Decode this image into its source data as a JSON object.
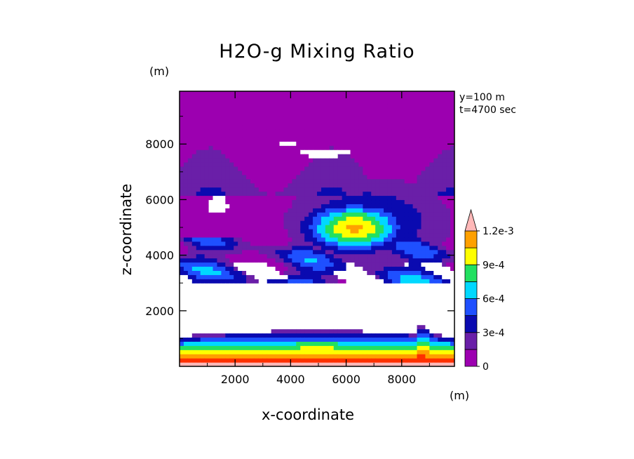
{
  "chart_data": {
    "type": "heatmap",
    "title": "H2O-g Mixing Ratio",
    "xlabel": "x-coordinate",
    "ylabel": "z-coordinate",
    "x_unit": "(m)",
    "y_unit": "(m)",
    "xlim": [
      0,
      9900
    ],
    "ylim": [
      0,
      9900
    ],
    "x_ticks": [
      2000,
      4000,
      6000,
      8000
    ],
    "x_tick_labels": [
      "2000",
      "4000",
      "6000",
      "8000"
    ],
    "y_ticks": [
      2000,
      4000,
      6000,
      8000
    ],
    "y_tick_labels": [
      "2000",
      "4000",
      "6000",
      "8000"
    ],
    "annotations": [
      "y=100 m",
      "t=4700 sec"
    ],
    "colorbar": {
      "levels": [
        0,
        0.00015,
        0.0003,
        0.00045,
        0.0006,
        0.00075,
        0.0009,
        0.00105,
        0.0012
      ],
      "colors": [
        "#9c00b0",
        "#6a1fa8",
        "#0a0ab0",
        "#1f50ff",
        "#00d8ff",
        "#22e060",
        "#ffff00",
        "#ffa000",
        "#ff3000",
        "#ffb8b8"
      ],
      "tick_values": [
        0,
        0.0003,
        0.0006,
        0.0009,
        0.0012
      ],
      "tick_labels": [
        "0",
        "3e-4",
        "6e-4",
        "9e-4",
        "1.2e-3"
      ],
      "extend": "max"
    },
    "regions": [
      {
        "x": [
          0,
          9900
        ],
        "z": [
          0,
          600
        ],
        "value": "1.2e-3+"
      },
      {
        "x": [
          0,
          9900
        ],
        "z": [
          600,
          1300
        ],
        "value": "1.5e-4 to 1.2e-3 (moist layer gradient)"
      },
      {
        "x": [
          0,
          9900
        ],
        "z": [
          1300,
          3000
        ],
        "value": "< 0 (white)"
      },
      {
        "x": [
          4500,
          7800
        ],
        "z": [
          4200,
          6000
        ],
        "value": "6e-4 to 7.5e-4 (moist core)"
      },
      {
        "x": [
          0,
          9900
        ],
        "z": [
          6500,
          9900
        ],
        "value": "0 to 1.5e-4"
      }
    ]
  }
}
